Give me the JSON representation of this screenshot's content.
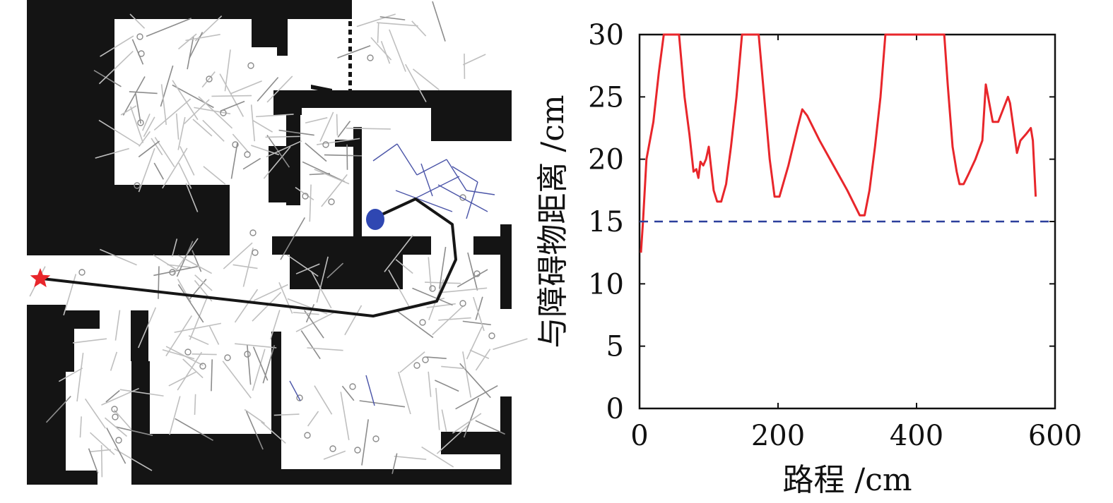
{
  "map_panel": {
    "obstacle_color": "#141414",
    "tree_color": "#bfbfbf",
    "tree_color_dark": "#8c8c8c",
    "local_tree_color": "#4b55a8",
    "path_color": "#161616",
    "start_marker": "red-star",
    "start_color": "#e8262b",
    "robot_marker": "blue-ellipse",
    "robot_color": "#2f47b2"
  },
  "chart_data": {
    "type": "line",
    "title": "",
    "xlabel": "路程 /cm",
    "ylabel": "与障碍物距离 /cm",
    "xlim": [
      0,
      600
    ],
    "ylim": [
      0,
      30
    ],
    "x_ticks": [
      "0",
      "200",
      "400",
      "600"
    ],
    "y_ticks": [
      "0",
      "5",
      "10",
      "15",
      "20",
      "25",
      "30"
    ],
    "grid": false,
    "series": [
      {
        "color": "#e8262b",
        "style": "solid",
        "points": [
          [
            2,
            12.5
          ],
          [
            5,
            15
          ],
          [
            10,
            20
          ],
          [
            20,
            23
          ],
          [
            28,
            27
          ],
          [
            35,
            30
          ],
          [
            57,
            30
          ],
          [
            65,
            25
          ],
          [
            72,
            22
          ],
          [
            78,
            19
          ],
          [
            82,
            19.2
          ],
          [
            85,
            18.5
          ],
          [
            88,
            19.8
          ],
          [
            92,
            19.5
          ],
          [
            96,
            20
          ],
          [
            100,
            21
          ],
          [
            103,
            19.5
          ],
          [
            107,
            17.5
          ],
          [
            112,
            16.6
          ],
          [
            118,
            16.6
          ],
          [
            125,
            18
          ],
          [
            132,
            21
          ],
          [
            140,
            25
          ],
          [
            148,
            30
          ],
          [
            172,
            30
          ],
          [
            180,
            25
          ],
          [
            188,
            20
          ],
          [
            195,
            17
          ],
          [
            202,
            17
          ],
          [
            215,
            19.5
          ],
          [
            228,
            22.5
          ],
          [
            235,
            24
          ],
          [
            242,
            23.5
          ],
          [
            260,
            21.5
          ],
          [
            280,
            19.5
          ],
          [
            300,
            17.5
          ],
          [
            318,
            15.5
          ],
          [
            325,
            15.5
          ],
          [
            332,
            17.5
          ],
          [
            340,
            21
          ],
          [
            348,
            25
          ],
          [
            355,
            30
          ],
          [
            440,
            30
          ],
          [
            445,
            26
          ],
          [
            452,
            21
          ],
          [
            458,
            19
          ],
          [
            462,
            18
          ],
          [
            468,
            18
          ],
          [
            475,
            18.8
          ],
          [
            485,
            20
          ],
          [
            495,
            21.5
          ],
          [
            500,
            26
          ],
          [
            505,
            24.5
          ],
          [
            510,
            23
          ],
          [
            518,
            23
          ],
          [
            525,
            24
          ],
          [
            532,
            25
          ],
          [
            535,
            24.5
          ],
          [
            540,
            22.5
          ],
          [
            545,
            20.5
          ],
          [
            550,
            21.5
          ],
          [
            558,
            22
          ],
          [
            565,
            22.5
          ],
          [
            568,
            21.5
          ],
          [
            572,
            17
          ]
        ]
      },
      {
        "color": "#2b3f9c",
        "style": "dashed",
        "points": [
          [
            0,
            15
          ],
          [
            600,
            15
          ]
        ]
      }
    ]
  }
}
